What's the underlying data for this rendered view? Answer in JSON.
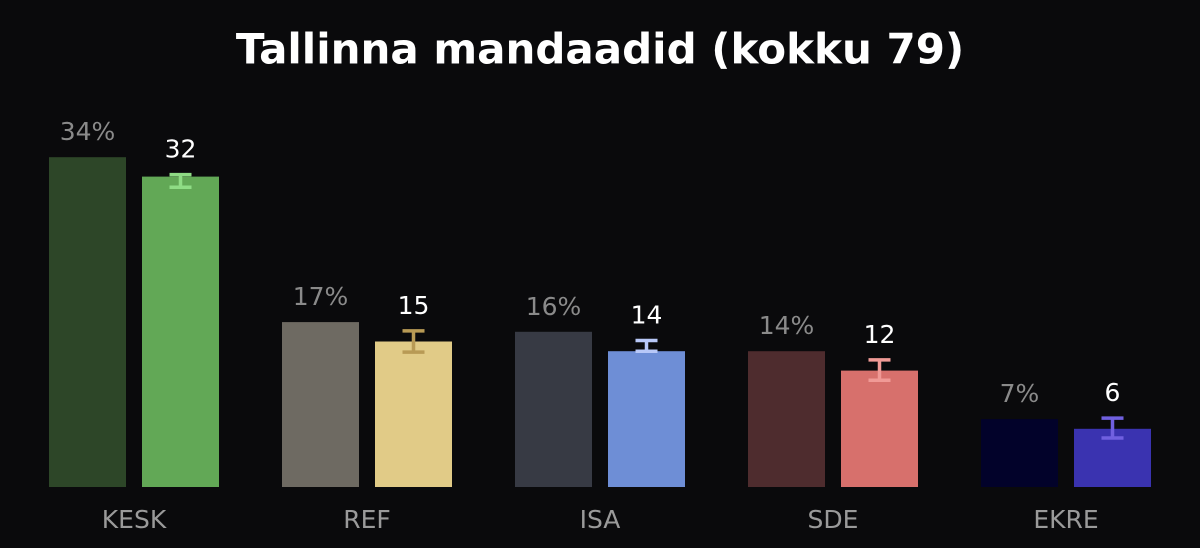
{
  "chart_data": {
    "type": "bar",
    "title": "Tallinna mandaadid (kokku 79)",
    "categories": [
      "KESK",
      "REF",
      "ISA",
      "SDE",
      "EKRE"
    ],
    "ylim": [
      0,
      40
    ],
    "series": [
      {
        "values": [
          34,
          17,
          16,
          14,
          7
        ],
        "value_labels": [
          "34%",
          "17%",
          "16%",
          "14%",
          "7%"
        ],
        "colors": [
          "#2d4628",
          "#6e6a62",
          "#373a44",
          "#4e2c2e",
          "#02022a"
        ]
      },
      {
        "values": [
          32,
          15,
          14,
          12,
          6
        ],
        "colors": [
          "#62a856",
          "#e1cb87",
          "#6e8ed6",
          "#d7706c",
          "#3a33b0"
        ],
        "error_low": [
          30.9,
          13.9,
          14.0,
          11.0,
          5.05
        ],
        "error_high": [
          32.2,
          16.1,
          15.1,
          13.1,
          7.1
        ],
        "error_colors": [
          "#8fdc85",
          "#b89a55",
          "#b8c8f8",
          "#f09a96",
          "#7060e0"
        ]
      }
    ]
  }
}
